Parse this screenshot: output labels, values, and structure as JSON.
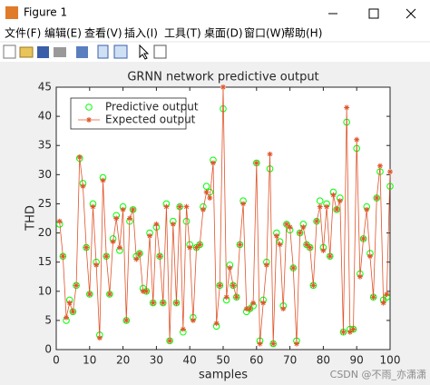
{
  "window": {
    "title": "Figure 1",
    "menu": [
      "文件(F)",
      "编辑(E)",
      "查看(V)",
      "插入(I)",
      "工具(T)",
      "桌面(D)",
      "窗口(W)",
      "帮助(H)"
    ]
  },
  "watermark": "CSDN @不雨_亦潇潇",
  "chart_data": {
    "type": "line",
    "title": "GRNN network predictive output",
    "x_label": "samples",
    "y_label": "THD",
    "x": [
      1,
      2,
      3,
      4,
      5,
      6,
      7,
      8,
      9,
      10,
      11,
      12,
      13,
      14,
      15,
      16,
      17,
      18,
      19,
      20,
      21,
      22,
      23,
      24,
      25,
      26,
      27,
      28,
      29,
      30,
      31,
      32,
      33,
      34,
      35,
      36,
      37,
      38,
      39,
      40,
      41,
      42,
      43,
      44,
      45,
      46,
      47,
      48,
      49,
      50,
      51,
      52,
      53,
      54,
      55,
      56,
      57,
      58,
      59,
      60,
      61,
      62,
      63,
      64,
      65,
      66,
      67,
      68,
      69,
      70,
      71,
      72,
      73,
      74,
      75,
      76,
      77,
      78,
      79,
      80,
      81,
      82,
      83,
      84,
      85,
      86,
      87,
      88,
      89,
      90,
      91,
      92,
      93,
      94,
      95,
      96,
      97,
      98,
      99,
      100
    ],
    "series": [
      {
        "name": "Predictive output",
        "color": "#00ff00",
        "marker": "o",
        "line": false,
        "values": [
          21.5,
          16,
          5,
          8.5,
          6.5,
          11,
          32.8,
          28.5,
          17.5,
          9.5,
          25,
          15,
          2.5,
          29.5,
          16,
          9.5,
          19,
          23,
          17,
          24.5,
          5,
          22,
          24,
          16,
          16.5,
          10.5,
          10,
          20,
          8,
          21,
          16,
          8,
          25,
          1.5,
          22,
          8,
          24.5,
          3,
          22,
          18,
          5.5,
          17.5,
          18,
          24.5,
          28,
          27,
          32.5,
          4,
          11,
          41.3,
          8.5,
          14.5,
          11,
          9,
          18,
          25.5,
          6.5,
          7,
          7.5,
          32,
          1.5,
          8.5,
          15,
          31,
          1,
          20,
          18.5,
          7.5,
          21.5,
          20.5,
          14,
          1.5,
          20,
          21.5,
          18,
          17.5,
          11,
          22,
          25.5,
          17.5,
          25,
          16,
          27,
          24,
          26,
          3,
          39,
          3.5,
          3.5,
          34.5,
          13,
          19,
          24.5,
          16.5,
          9,
          26,
          30.5,
          8.5,
          9,
          28
        ]
      },
      {
        "name": "Expected output",
        "color": "#e0542a",
        "marker": "*",
        "line": true,
        "values": [
          22,
          16,
          5.5,
          8,
          6.5,
          11,
          33,
          28,
          17.5,
          9.5,
          24.5,
          14.5,
          2,
          29,
          16,
          9.5,
          18.5,
          22.5,
          17.5,
          24,
          5,
          22.5,
          24,
          15.5,
          16.5,
          10,
          10,
          19.5,
          8,
          21.5,
          16,
          8,
          24.5,
          1.5,
          21.5,
          8,
          24.5,
          3.5,
          24.5,
          17.5,
          5,
          17.5,
          18,
          24,
          27,
          26,
          32,
          4.5,
          11,
          45,
          9,
          14,
          11,
          9,
          18,
          25,
          7,
          7,
          8,
          32,
          1,
          8,
          14.5,
          33.5,
          1,
          19.5,
          18,
          7,
          21.5,
          21,
          14,
          1,
          20,
          21,
          18,
          17.5,
          11,
          22,
          24.5,
          17,
          24.5,
          16,
          26.5,
          24,
          25.5,
          3,
          41.5,
          3,
          3.5,
          36,
          12.5,
          19,
          24,
          16,
          9,
          26,
          31.5,
          8,
          9.5,
          30.5
        ]
      }
    ],
    "xlim": [
      0,
      100
    ],
    "xticks": [
      0,
      10,
      20,
      30,
      40,
      50,
      60,
      70,
      80,
      90,
      100
    ],
    "ylim": [
      0,
      45
    ],
    "yticks": [
      0,
      5,
      10,
      15,
      20,
      25,
      30,
      35,
      40,
      45
    ],
    "legend": "upper left"
  }
}
